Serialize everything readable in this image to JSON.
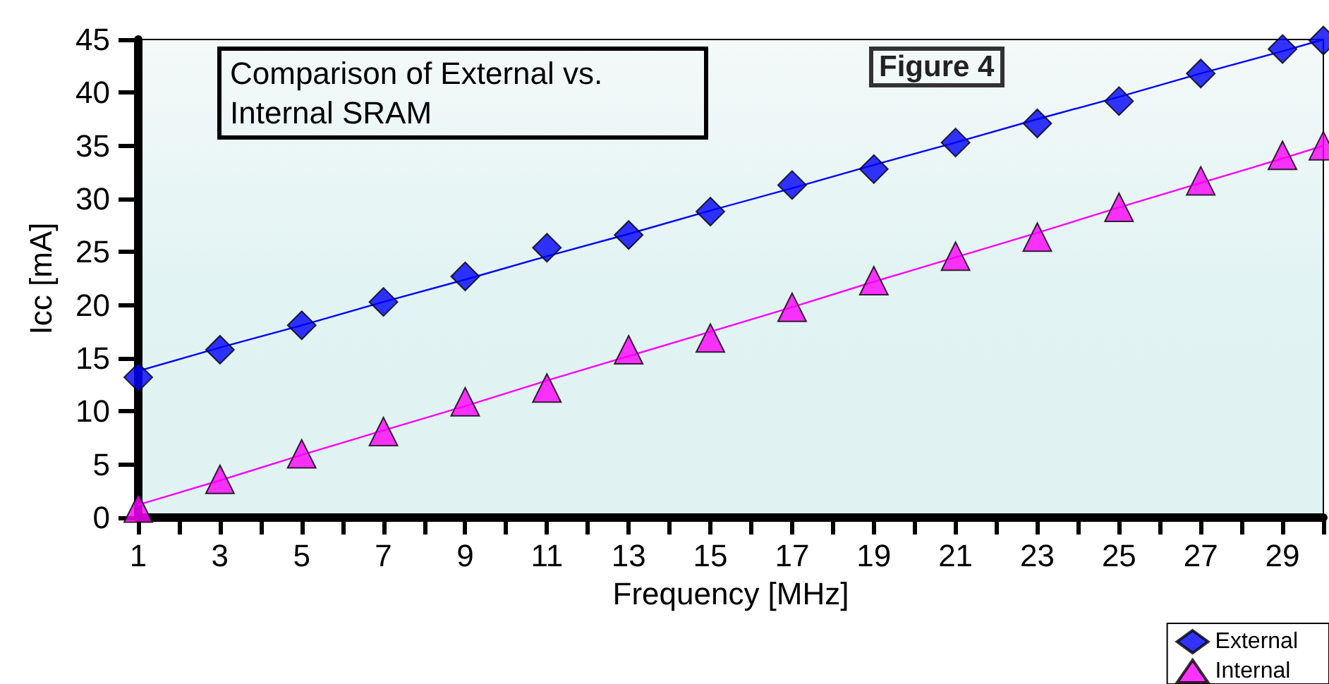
{
  "chart_data": {
    "type": "scatter",
    "title": "Comparison of External vs. Internal SRAM",
    "xlabel": "Frequency [MHz]",
    "ylabel": "Icc [mA]",
    "annotations": [
      "Figure 4"
    ],
    "x": [
      1,
      3,
      5,
      7,
      9,
      11,
      13,
      15,
      17,
      19,
      21,
      23,
      25,
      27,
      29,
      30
    ],
    "series": [
      {
        "name": "External",
        "color": "#0000ff",
        "marker": "diamond",
        "values": [
          13.2,
          15.8,
          18.1,
          20.3,
          22.7,
          25.4,
          26.6,
          28.8,
          31.3,
          32.8,
          35.3,
          37.1,
          39.2,
          41.8,
          44.1,
          44.9
        ]
      },
      {
        "name": "Internal",
        "color": "#ff00ff",
        "marker": "triangle",
        "values": [
          0.9,
          3.6,
          6.0,
          8.1,
          10.9,
          12.2,
          15.8,
          16.9,
          19.8,
          22.3,
          24.6,
          26.4,
          29.2,
          31.7,
          34.1,
          35.0
        ]
      },
      {
        "type": "line",
        "color": "#0000ff",
        "marker": "none",
        "values": [
          13.8,
          16.0,
          18.1,
          20.3,
          22.4,
          24.6,
          26.7,
          28.9,
          31.0,
          33.2,
          35.3,
          37.5,
          39.6,
          41.8,
          43.9,
          45.0
        ]
      },
      {
        "type": "line",
        "color": "#ff00ff",
        "marker": "none",
        "values": [
          1.2,
          3.5,
          5.9,
          8.2,
          10.5,
          12.9,
          15.2,
          17.5,
          19.8,
          22.2,
          24.5,
          26.8,
          29.2,
          31.5,
          33.8,
          35.0
        ]
      }
    ],
    "xlim": [
      1,
      30
    ],
    "xticks": [
      1,
      {
        "value": 2,
        "label": null
      },
      3,
      {
        "value": 4,
        "label": null
      },
      5,
      {
        "value": 6,
        "label": null
      },
      7,
      {
        "value": 8,
        "label": null
      },
      9,
      {
        "value": 10,
        "label": null
      },
      11,
      {
        "value": 12,
        "label": null
      },
      13,
      {
        "value": 14,
        "label": null
      },
      15,
      {
        "value": 16,
        "label": null
      },
      17,
      {
        "value": 18,
        "label": null
      },
      19,
      {
        "value": 20,
        "label": null
      },
      21,
      {
        "value": 22,
        "label": null
      },
      23,
      {
        "value": 24,
        "label": null
      },
      25,
      {
        "value": 26,
        "label": null
      },
      27,
      {
        "value": 28,
        "label": null
      },
      29,
      {
        "value": 30,
        "label": null
      }
    ],
    "ylim": [
      0,
      45
    ],
    "yticks": [
      0,
      5,
      10,
      15,
      20,
      25,
      30,
      35,
      40,
      45
    ],
    "grid": false,
    "legend": "bottom right"
  }
}
